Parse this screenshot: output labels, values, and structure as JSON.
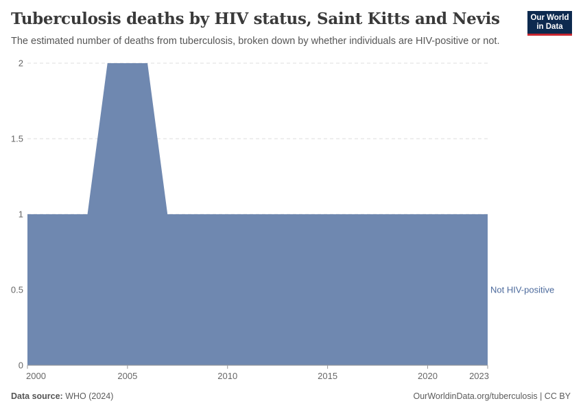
{
  "header": {
    "title": "Tuberculosis deaths by HIV status, Saint Kitts and Nevis",
    "subtitle": "The estimated number of deaths from tuberculosis, broken down by whether individuals are HIV-positive or not.",
    "logo_line1": "Our World",
    "logo_line2": "in Data"
  },
  "footer": {
    "source_label": "Data source:",
    "source_value": "WHO (2024)",
    "url_license": "OurWorldinData.org/tuberculosis | CC BY"
  },
  "chart_data": {
    "type": "area",
    "x": [
      2000,
      2001,
      2002,
      2003,
      2004,
      2005,
      2006,
      2007,
      2008,
      2009,
      2010,
      2011,
      2012,
      2013,
      2014,
      2015,
      2016,
      2017,
      2018,
      2019,
      2020,
      2021,
      2022,
      2023
    ],
    "series": [
      {
        "name": "Not HIV-positive",
        "color": "#6f88b0",
        "label_color": "#4c6a9c",
        "values": [
          1,
          1,
          1,
          1,
          2,
          2,
          2,
          1,
          1,
          1,
          1,
          1,
          1,
          1,
          1,
          1,
          1,
          1,
          1,
          1,
          1,
          1,
          1,
          1
        ]
      }
    ],
    "xlim": [
      2000,
      2023
    ],
    "ylim": [
      0,
      2
    ],
    "x_ticks": [
      2000,
      2005,
      2010,
      2015,
      2020,
      2023
    ],
    "y_ticks": [
      0,
      0.5,
      1,
      1.5,
      2
    ],
    "grid": "horizontal dashed"
  }
}
